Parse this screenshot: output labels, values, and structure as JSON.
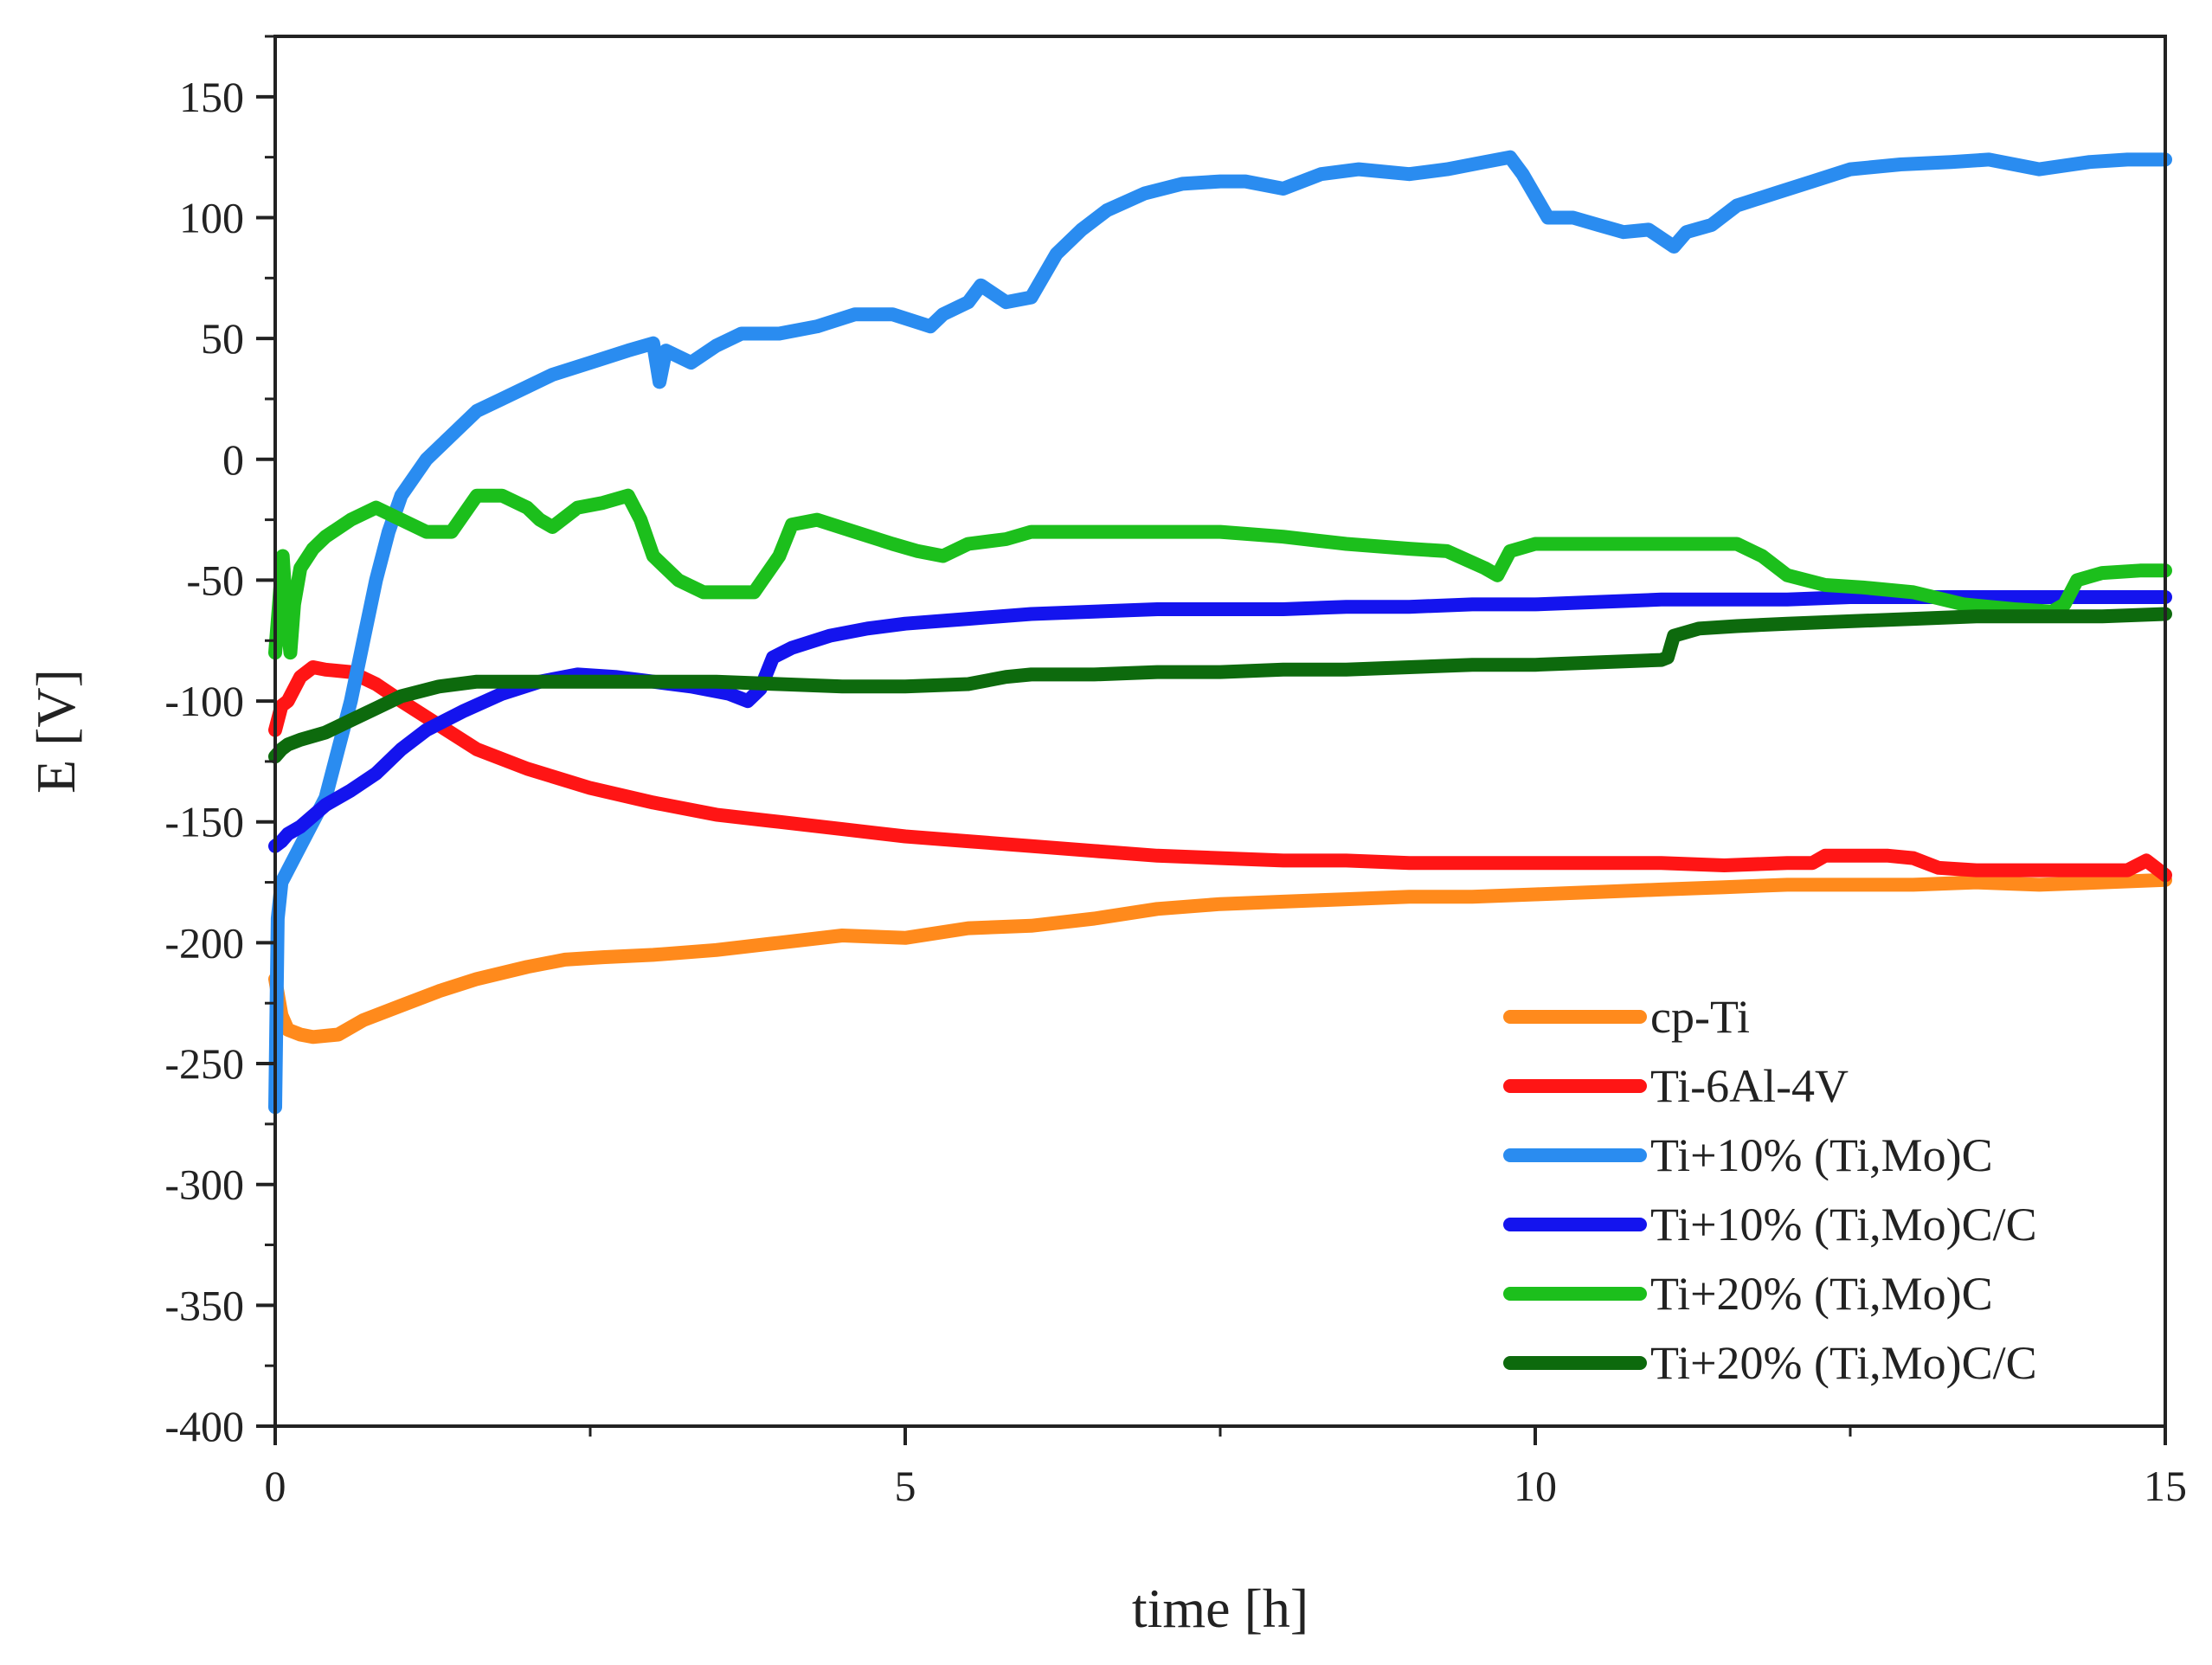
{
  "chart_data": {
    "type": "line",
    "title": "",
    "xlabel": "time [h]",
    "ylabel": "E [V]",
    "xlim": [
      0,
      15
    ],
    "ylim": [
      -400,
      175
    ],
    "xticks": [
      0,
      5,
      10,
      15
    ],
    "yticks": [
      150,
      100,
      50,
      0,
      -50,
      -100,
      -150,
      -200,
      -250,
      -300,
      -350,
      -400
    ],
    "grid": false,
    "legend_position": "bottom-right",
    "series": [
      {
        "name": "cp-Ti",
        "color": "#ff8a1c",
        "x": [
          0,
          0.05,
          0.1,
          0.2,
          0.3,
          0.5,
          0.7,
          1.0,
          1.3,
          1.6,
          2.0,
          2.3,
          2.6,
          3.0,
          3.5,
          4.0,
          4.5,
          5.0,
          5.5,
          6.0,
          6.5,
          7.0,
          7.5,
          8.0,
          8.5,
          9.0,
          9.5,
          10.0,
          10.5,
          11.0,
          11.5,
          12.0,
          12.5,
          13.0,
          13.5,
          14.0,
          14.5,
          15.0
        ],
        "y": [
          -215,
          -230,
          -236,
          -238,
          -239,
          -238,
          -232,
          -226,
          -220,
          -215,
          -210,
          -207,
          -206,
          -205,
          -203,
          -200,
          -197,
          -198,
          -194,
          -193,
          -190,
          -186,
          -184,
          -183,
          -182,
          -181,
          -181,
          -180,
          -179,
          -178,
          -177,
          -176,
          -176,
          -176,
          -175,
          -176,
          -175,
          -174
        ]
      },
      {
        "name": "Ti-6Al-4V",
        "color": "#ff1515",
        "x": [
          0,
          0.05,
          0.1,
          0.2,
          0.3,
          0.4,
          0.6,
          0.8,
          1.0,
          1.3,
          1.6,
          2.0,
          2.5,
          3.0,
          3.5,
          4.0,
          4.5,
          5.0,
          5.5,
          6.0,
          6.5,
          7.0,
          7.5,
          8.0,
          8.5,
          9.0,
          9.5,
          10.0,
          10.5,
          11.0,
          11.5,
          12.0,
          12.2,
          12.3,
          12.8,
          13.0,
          13.2,
          13.5,
          14.0,
          14.5,
          14.7,
          14.85,
          15.0
        ],
        "y": [
          -112,
          -102,
          -100,
          -90,
          -86,
          -87,
          -88,
          -93,
          -100,
          -110,
          -120,
          -128,
          -136,
          -142,
          -147,
          -150,
          -153,
          -156,
          -158,
          -160,
          -162,
          -164,
          -165,
          -166,
          -166,
          -167,
          -167,
          -167,
          -167,
          -167,
          -168,
          -167,
          -167,
          -164,
          -164,
          -165,
          -169,
          -170,
          -170,
          -170,
          -170,
          -166,
          -172
        ]
      },
      {
        "name": "Ti+10% (Ti,Mo)C",
        "color": "#2a8cf0",
        "x": [
          0,
          0.02,
          0.05,
          0.1,
          0.2,
          0.3,
          0.4,
          0.5,
          0.6,
          0.7,
          0.8,
          0.9,
          1.0,
          1.2,
          1.4,
          1.6,
          1.8,
          2.0,
          2.2,
          2.5,
          2.8,
          3.0,
          3.05,
          3.1,
          3.3,
          3.5,
          3.7,
          4.0,
          4.3,
          4.6,
          4.9,
          5.2,
          5.3,
          5.5,
          5.6,
          5.8,
          6.0,
          6.2,
          6.4,
          6.6,
          6.9,
          7.2,
          7.5,
          7.7,
          8.0,
          8.3,
          8.6,
          9.0,
          9.3,
          9.6,
          9.8,
          9.9,
          10.1,
          10.3,
          10.5,
          10.7,
          10.9,
          11.1,
          11.2,
          11.4,
          11.6,
          11.9,
          12.2,
          12.5,
          12.9,
          13.3,
          13.6,
          13.8,
          14.0,
          14.4,
          14.7,
          15.0
        ],
        "y": [
          -268,
          -190,
          -175,
          -170,
          -160,
          -150,
          -140,
          -120,
          -100,
          -75,
          -50,
          -30,
          -15,
          0,
          10,
          20,
          25,
          30,
          35,
          40,
          45,
          48,
          32,
          45,
          40,
          47,
          52,
          52,
          55,
          60,
          60,
          55,
          60,
          65,
          72,
          65,
          67,
          85,
          95,
          103,
          110,
          114,
          115,
          115,
          112,
          118,
          120,
          118,
          120,
          123,
          125,
          118,
          100,
          100,
          97,
          94,
          95,
          88,
          94,
          97,
          105,
          110,
          115,
          120,
          122,
          123,
          124,
          122,
          120,
          123,
          124,
          124
        ]
      },
      {
        "name": "Ti+10% (Ti,Mo)C/C",
        "color": "#1414ee",
        "x": [
          0,
          0.05,
          0.1,
          0.2,
          0.4,
          0.6,
          0.8,
          1.0,
          1.2,
          1.5,
          1.8,
          2.1,
          2.4,
          2.7,
          3.0,
          3.3,
          3.6,
          3.75,
          3.85,
          3.95,
          4.1,
          4.4,
          4.7,
          5.0,
          5.5,
          6.0,
          6.5,
          7.0,
          7.5,
          8.0,
          8.5,
          9.0,
          9.5,
          10.0,
          10.5,
          11.0,
          11.5,
          12.0,
          12.5,
          13.0,
          13.5,
          14.0,
          14.5,
          15.0
        ],
        "y": [
          -160,
          -158,
          -155,
          -152,
          -143,
          -137,
          -130,
          -120,
          -112,
          -104,
          -97,
          -92,
          -89,
          -90,
          -92,
          -94,
          -97,
          -100,
          -95,
          -82,
          -78,
          -73,
          -70,
          -68,
          -66,
          -64,
          -63,
          -62,
          -62,
          -62,
          -61,
          -61,
          -60,
          -60,
          -59,
          -58,
          -58,
          -58,
          -57,
          -57,
          -57,
          -57,
          -57,
          -57
        ]
      },
      {
        "name": "Ti+20% (Ti,Mo)C",
        "color": "#1cbf1c",
        "x": [
          0,
          0.03,
          0.06,
          0.09,
          0.12,
          0.15,
          0.2,
          0.3,
          0.4,
          0.6,
          0.8,
          1.0,
          1.2,
          1.4,
          1.6,
          1.8,
          2.0,
          2.1,
          2.2,
          2.4,
          2.6,
          2.8,
          2.9,
          3.0,
          3.2,
          3.4,
          3.6,
          3.8,
          4.0,
          4.1,
          4.3,
          4.6,
          4.9,
          5.1,
          5.3,
          5.5,
          5.8,
          6.0,
          6.5,
          7.0,
          7.5,
          8.0,
          8.5,
          9.0,
          9.3,
          9.6,
          9.7,
          9.8,
          10.0,
          10.5,
          11.0,
          11.3,
          11.6,
          11.8,
          12.0,
          12.3,
          12.6,
          13.0,
          13.4,
          13.8,
          14.1,
          14.2,
          14.3,
          14.5,
          14.8,
          15.0
        ],
        "y": [
          -80,
          -60,
          -40,
          -65,
          -80,
          -60,
          -45,
          -37,
          -32,
          -25,
          -20,
          -25,
          -30,
          -30,
          -15,
          -15,
          -20,
          -25,
          -28,
          -20,
          -18,
          -15,
          -25,
          -40,
          -50,
          -55,
          -55,
          -55,
          -40,
          -27,
          -25,
          -30,
          -35,
          -38,
          -40,
          -35,
          -33,
          -30,
          -30,
          -30,
          -30,
          -32,
          -35,
          -37,
          -38,
          -45,
          -48,
          -38,
          -35,
          -35,
          -35,
          -35,
          -35,
          -40,
          -48,
          -52,
          -53,
          -55,
          -60,
          -62,
          -63,
          -60,
          -50,
          -47,
          -46,
          -46
        ]
      },
      {
        "name": "Ti+20% (Ti,Mo)C/C",
        "color": "#0d6a0d",
        "x": [
          0,
          0.05,
          0.1,
          0.2,
          0.4,
          0.6,
          0.8,
          1.0,
          1.3,
          1.6,
          2.0,
          2.5,
          3.0,
          3.5,
          4.0,
          4.5,
          5.0,
          5.5,
          5.8,
          6.0,
          6.5,
          7.0,
          7.5,
          8.0,
          8.5,
          9.0,
          9.5,
          10.0,
          10.5,
          11.0,
          11.05,
          11.1,
          11.3,
          11.6,
          12.0,
          12.5,
          13.0,
          13.5,
          14.0,
          14.5,
          15.0
        ],
        "y": [
          -123,
          -120,
          -118,
          -116,
          -113,
          -108,
          -103,
          -98,
          -94,
          -92,
          -92,
          -92,
          -92,
          -92,
          -93,
          -94,
          -94,
          -93,
          -90,
          -89,
          -89,
          -88,
          -88,
          -87,
          -87,
          -86,
          -85,
          -85,
          -84,
          -83,
          -82,
          -73,
          -70,
          -69,
          -68,
          -67,
          -66,
          -65,
          -65,
          -65,
          -64
        ]
      }
    ]
  }
}
